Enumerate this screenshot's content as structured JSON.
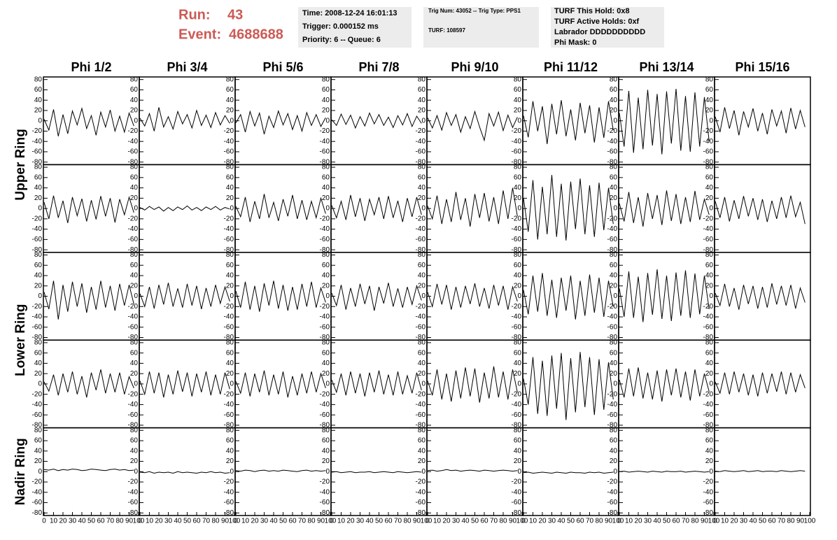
{
  "header": {
    "run_label": "Run:",
    "run": "43",
    "event_label": "Event:",
    "event": "4688688",
    "box1": [
      "Time: 2008-12-24 16:01:13",
      "Trigger: 0.000152 ms",
      "Priority: 6 -- Queue: 6"
    ],
    "box2": [
      "Trig Num: 43052 -- Trig Type: PPS1",
      "TURF: 108597"
    ],
    "box3": [
      "TURF This Hold: 0x8",
      "TURF Active Holds: 0xf",
      "Labrador DDDDDDDDDD",
      "Phi Mask: 0"
    ]
  },
  "chart_data": {
    "type": "line",
    "columns": [
      "Phi 1/2",
      "Phi 3/4",
      "Phi 5/6",
      "Phi 7/8",
      "Phi 9/10",
      "Phi 11/12",
      "Phi 13/14",
      "Phi 15/16"
    ],
    "rings": [
      "Upper Ring",
      "Lower Ring",
      "Nadir Ring"
    ],
    "color": "#000000",
    "xlim": [
      0,
      100
    ],
    "xticks": [
      0,
      10,
      20,
      30,
      40,
      50,
      60,
      70,
      80,
      90,
      100
    ],
    "ylim": [
      -85,
      85
    ],
    "yticks": [
      -80,
      -60,
      -40,
      -20,
      0,
      20,
      40,
      60,
      80
    ],
    "x": [
      0,
      5,
      10,
      15,
      20,
      25,
      30,
      35,
      40,
      45,
      50,
      55,
      60,
      65,
      70,
      75,
      80,
      85,
      90,
      95
    ],
    "panels": [
      [
        [
          3,
          -18,
          22,
          -30,
          12,
          -25,
          19,
          -8,
          24,
          -15,
          10,
          -28,
          17,
          -12,
          21,
          -20,
          9,
          -22,
          15,
          -10
        ],
        [
          5,
          -10,
          14,
          -20,
          26,
          -12,
          8,
          -16,
          18,
          -6,
          12,
          -14,
          20,
          -9,
          11,
          -13,
          16,
          -8,
          10,
          -5
        ],
        [
          -4,
          12,
          -22,
          18,
          -10,
          15,
          -26,
          9,
          -13,
          19,
          -8,
          14,
          -17,
          10,
          -20,
          16,
          -9,
          12,
          -11,
          6
        ],
        [
          2,
          -9,
          13,
          -7,
          11,
          -14,
          8,
          -10,
          15,
          -6,
          12,
          -9,
          7,
          -13,
          10,
          -8,
          14,
          -11,
          9,
          -5
        ],
        [
          6,
          -14,
          10,
          -18,
          16,
          -9,
          12,
          -22,
          8,
          -15,
          18,
          -12,
          -38,
          14,
          -10,
          17,
          -19,
          11,
          -13,
          7
        ],
        [
          10,
          -32,
          38,
          -20,
          28,
          -45,
          33,
          -26,
          40,
          -30,
          22,
          -38,
          35,
          -24,
          30,
          -42,
          26,
          -33,
          38,
          -18
        ],
        [
          15,
          -50,
          58,
          -62,
          45,
          -55,
          60,
          -48,
          52,
          -65,
          57,
          -44,
          62,
          -58,
          48,
          -60,
          55,
          -50,
          46,
          -40
        ],
        [
          8,
          -22,
          26,
          -15,
          20,
          -28,
          18,
          -12,
          24,
          -20,
          15,
          -26,
          22,
          -10,
          19,
          -24,
          25,
          -16,
          20,
          -12
        ]
      ],
      [
        [
          12,
          -20,
          25,
          -18,
          15,
          -28,
          22,
          -14,
          19,
          -25,
          16,
          -21,
          24,
          -15,
          20,
          -27,
          18,
          -12,
          22,
          -8
        ],
        [
          2,
          -3,
          4,
          -2,
          3,
          -5,
          2,
          -4,
          3,
          -2,
          5,
          -3,
          2,
          -4,
          3,
          -2,
          4,
          -3,
          2,
          -1
        ],
        [
          4,
          -16,
          22,
          -26,
          14,
          -20,
          28,
          -18,
          12,
          -24,
          18,
          -15,
          26,
          -20,
          16,
          -22,
          14,
          -18,
          20,
          -10
        ],
        [
          6,
          -18,
          14,
          -22,
          26,
          -16,
          20,
          -24,
          18,
          -12,
          22,
          -20,
          24,
          -18,
          15,
          -26,
          20,
          -16,
          22,
          -12
        ],
        [
          5,
          -20,
          25,
          -30,
          18,
          -26,
          32,
          -22,
          20,
          -35,
          28,
          -18,
          30,
          -25,
          22,
          -30,
          35,
          -20,
          40,
          -15
        ],
        [
          20,
          -45,
          55,
          -60,
          42,
          -50,
          65,
          -55,
          48,
          -62,
          52,
          -40,
          58,
          -50,
          45,
          -55,
          50,
          -42,
          40,
          -30
        ],
        [
          10,
          -25,
          32,
          -28,
          22,
          -35,
          30,
          -20,
          26,
          -32,
          35,
          -24,
          28,
          -30,
          22,
          -26,
          34,
          -22,
          18,
          -12
        ],
        [
          14,
          -18,
          22,
          -25,
          16,
          -20,
          24,
          -15,
          20,
          -22,
          18,
          -26,
          15,
          -20,
          22,
          -18,
          25,
          -16,
          12,
          -30
        ]
      ],
      [
        [
          8,
          -25,
          30,
          -45,
          22,
          -30,
          28,
          -20,
          25,
          -32,
          18,
          -26,
          30,
          -22,
          20,
          -28,
          24,
          -18,
          22,
          -15
        ],
        [
          5,
          -20,
          18,
          -24,
          22,
          -16,
          26,
          -20,
          15,
          -22,
          24,
          -18,
          20,
          -25,
          16,
          -20,
          22,
          -14,
          18,
          -10
        ],
        [
          10,
          -22,
          28,
          -26,
          20,
          -30,
          25,
          -18,
          30,
          -24,
          22,
          -28,
          18,
          -26,
          24,
          -20,
          28,
          -22,
          16,
          -12
        ],
        [
          6,
          -18,
          22,
          -26,
          16,
          -20,
          24,
          -15,
          20,
          -28,
          18,
          -14,
          26,
          -20,
          15,
          -22,
          18,
          -16,
          20,
          -8
        ],
        [
          8,
          -20,
          24,
          -16,
          22,
          -26,
          18,
          -22,
          20,
          -15,
          25,
          -20,
          16,
          -24,
          22,
          -18,
          20,
          -26,
          18,
          -10
        ],
        [
          12,
          -35,
          40,
          -30,
          45,
          -38,
          32,
          -42,
          36,
          -28,
          40,
          -45,
          30,
          -38,
          42,
          -32,
          36,
          -40,
          30,
          -20
        ],
        [
          15,
          -40,
          48,
          -42,
          38,
          -50,
          45,
          -36,
          52,
          -44,
          40,
          -48,
          46,
          -38,
          50,
          -42,
          44,
          -35,
          40,
          -25
        ],
        [
          6,
          -18,
          24,
          -20,
          16,
          -26,
          22,
          -15,
          20,
          -24,
          18,
          -22,
          25,
          -16,
          20,
          -18,
          22,
          -24,
          16,
          -12
        ]
      ],
      [
        [
          4,
          -14,
          18,
          -22,
          20,
          -16,
          24,
          -20,
          15,
          -26,
          22,
          -12,
          28,
          -18,
          20,
          -16,
          22,
          -20,
          14,
          -8
        ],
        [
          6,
          -20,
          24,
          -18,
          22,
          -26,
          18,
          -20,
          26,
          -15,
          22,
          -24,
          20,
          -16,
          24,
          -22,
          18,
          -20,
          22,
          -10
        ],
        [
          5,
          -18,
          22,
          -24,
          20,
          -16,
          26,
          -22,
          18,
          -20,
          24,
          -26,
          15,
          -22,
          20,
          -18,
          24,
          -16,
          20,
          -8
        ],
        [
          8,
          -16,
          20,
          -22,
          24,
          -18,
          20,
          -24,
          22,
          -16,
          26,
          -20,
          18,
          -22,
          24,
          -20,
          16,
          -18,
          22,
          -12
        ],
        [
          6,
          -22,
          28,
          -30,
          20,
          -34,
          26,
          -28,
          32,
          -24,
          30,
          -36,
          22,
          -28,
          34,
          -26,
          24,
          -30,
          28,
          -16
        ],
        [
          10,
          -40,
          52,
          -58,
          45,
          -62,
          55,
          -48,
          60,
          -70,
          50,
          -55,
          62,
          -45,
          52,
          -60,
          48,
          -50,
          42,
          -30
        ],
        [
          8,
          -26,
          30,
          -24,
          32,
          -28,
          22,
          -30,
          26,
          -34,
          28,
          -22,
          30,
          -26,
          24,
          -32,
          28,
          -24,
          20,
          -15
        ],
        [
          4,
          -18,
          22,
          -20,
          24,
          -16,
          20,
          -22,
          18,
          -24,
          22,
          -18,
          20,
          -15,
          24,
          -20,
          22,
          -16,
          18,
          -8
        ]
      ],
      [
        [
          4,
          3,
          5,
          2,
          4,
          3,
          5,
          4,
          2,
          3,
          5,
          4,
          3,
          2,
          4,
          5,
          3,
          4,
          2,
          3
        ],
        [
          -1,
          -2,
          0,
          -3,
          -1,
          -2,
          -1,
          -3,
          0,
          -2,
          -1,
          -2,
          -3,
          -1,
          -2,
          0,
          -2,
          -1,
          -3,
          -2
        ],
        [
          2,
          1,
          3,
          2,
          0,
          2,
          3,
          1,
          2,
          1,
          3,
          2,
          1,
          0,
          2,
          3,
          1,
          2,
          1,
          2
        ],
        [
          -1,
          0,
          -2,
          -1,
          0,
          -2,
          -1,
          -1,
          0,
          -2,
          -1,
          0,
          -1,
          -2,
          0,
          -1,
          -2,
          -1,
          0,
          -1
        ],
        [
          2,
          3,
          1,
          2,
          4,
          2,
          3,
          1,
          2,
          3,
          2,
          1,
          3,
          2,
          1,
          2,
          3,
          2,
          1,
          2
        ],
        [
          -2,
          -1,
          -3,
          -2,
          -1,
          -2,
          -3,
          -1,
          -2,
          -3,
          -1,
          -2,
          -2,
          -3,
          -1,
          -2,
          -1,
          -3,
          -2,
          -1
        ],
        [
          0,
          1,
          -1,
          0,
          1,
          0,
          -1,
          1,
          0,
          -1,
          1,
          0,
          0,
          1,
          -1,
          0,
          1,
          0,
          -1,
          0
        ],
        [
          1,
          0,
          2,
          1,
          0,
          1,
          2,
          0,
          1,
          2,
          0,
          1,
          1,
          0,
          2,
          1,
          0,
          1,
          2,
          1
        ]
      ]
    ]
  }
}
